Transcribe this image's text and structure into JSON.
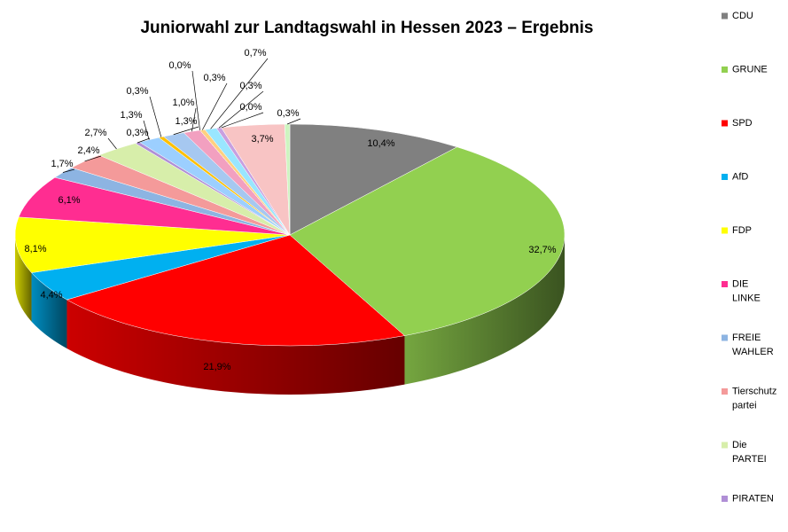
{
  "chart_data": {
    "type": "pie",
    "title": "Juniorwahl zur Landtagswahl in Hessen 2023 – Ergebnis",
    "categories": [
      "CDU",
      "GRUNE",
      "SPD",
      "AfD",
      "FDP",
      "DIE LINKE",
      "FREIE WAHLER",
      "Tierschutz partei",
      "Die PARTEI",
      "PIRATEN",
      null,
      null,
      null,
      null,
      null,
      null,
      null,
      null,
      null,
      null,
      null
    ],
    "values": [
      10.4,
      32.7,
      21.9,
      4.4,
      8.1,
      6.1,
      1.7,
      2.4,
      2.7,
      0.3,
      1.3,
      0.3,
      1.3,
      1.0,
      0.0,
      0.3,
      0.7,
      0.3,
      0.0,
      3.7,
      0.3
    ],
    "value_labels": [
      "10,4%",
      "32,7%",
      "21,9%",
      "4,4%",
      "8,1%",
      "6,1%",
      "1,7%",
      "2,4%",
      "2,7%",
      "0,3%",
      "1,3%",
      "0,3%",
      "1,3%",
      "1,0%",
      "0,0%",
      "0,3%",
      "0,7%",
      "0,3%",
      "0,0%",
      "3,7%",
      "0,3%"
    ],
    "colors": [
      "#808080",
      "#92d050",
      "#ff0000",
      "#00b0f0",
      "#ffff00",
      "#ff2d91",
      "#8db4e2",
      "#f49a9a",
      "#d7eeaa",
      "#b08fd6",
      "#9ccfff",
      "#ffc000",
      "#a6c8f0",
      "#f2a0c0",
      "#c0c0c0",
      "#ffd080",
      "#99e6ff",
      "#c8a0e0",
      "#b0e0b0",
      "#f8c4c4",
      "#cdf5c0"
    ],
    "legend": "right"
  }
}
